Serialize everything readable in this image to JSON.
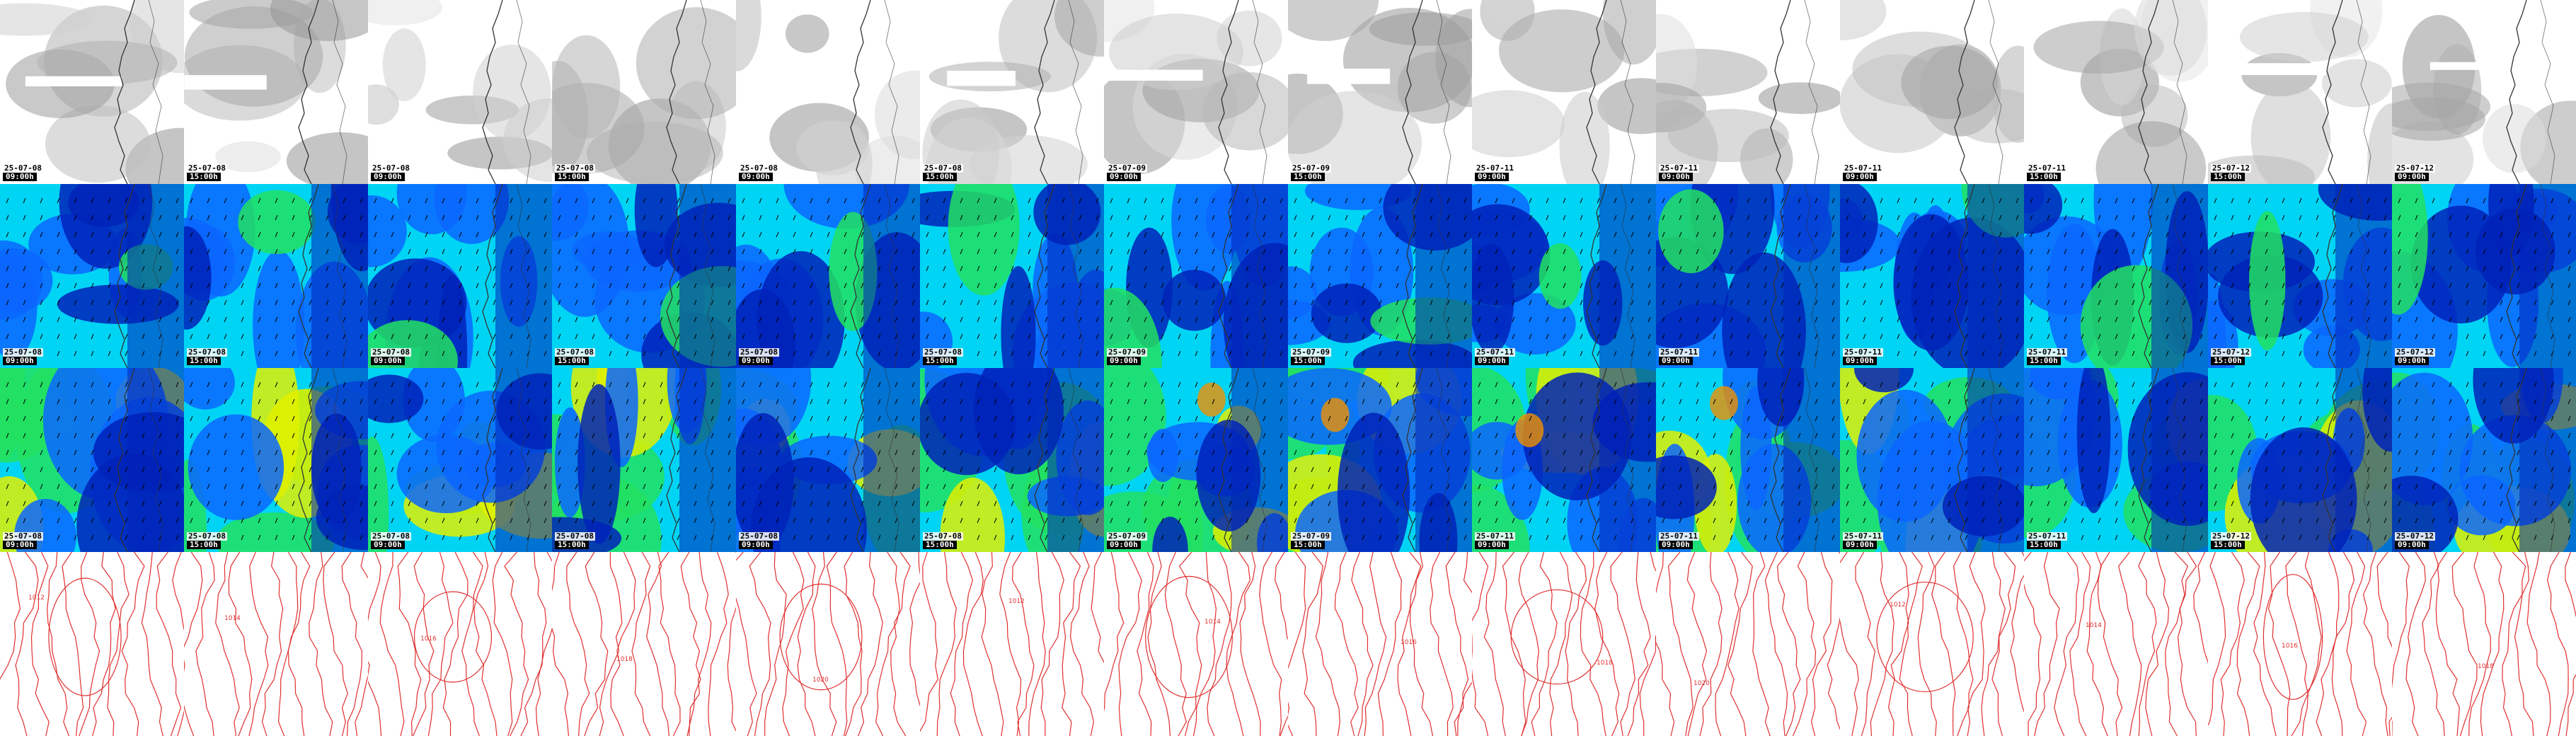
{
  "rows": [
    {
      "type": "cloud",
      "name": "cloud-cover-row"
    },
    {
      "type": "wind",
      "name": "wind-gust-row"
    },
    {
      "type": "wind-strong",
      "name": "wind-speed-row"
    },
    {
      "type": "pressure",
      "name": "pressure-isobars-row"
    }
  ],
  "frames": [
    {
      "date": "25-07-08",
      "time": "09:00h"
    },
    {
      "date": "25-07-08",
      "time": "15:00h"
    },
    {
      "date": "25-07-08",
      "time": "09:00h"
    },
    {
      "date": "25-07-08",
      "time": "15:00h"
    },
    {
      "date": "25-07-08",
      "time": "09:00h"
    },
    {
      "date": "25-07-08",
      "time": "15:00h"
    },
    {
      "date": "25-07-09",
      "time": "09:00h"
    },
    {
      "date": "25-07-09",
      "time": "15:00h"
    },
    {
      "date": "25-07-11",
      "time": "09:00h"
    },
    {
      "date": "25-07-11",
      "time": "09:00h"
    },
    {
      "date": "25-07-11",
      "time": "09:00h"
    },
    {
      "date": "25-07-11",
      "time": "15:00h"
    },
    {
      "date": "25-07-12",
      "time": "15:00h"
    },
    {
      "date": "25-07-12",
      "time": "09:00h"
    }
  ],
  "colors": {
    "cloud_bg": "#ffffff",
    "cloud_gray": "#9a9a9a",
    "wind_low": "#0022b8",
    "wind_mid": "#0a66ff",
    "wind_cyan": "#00d4f4",
    "wind_green": "#22e060",
    "wind_yellow": "#e0f000",
    "wind_orange": "#f09000",
    "isobar": "#e03030",
    "coast": "#333333"
  },
  "isobar_labels": [
    "1012",
    "1014",
    "1016",
    "1018",
    "1020"
  ]
}
